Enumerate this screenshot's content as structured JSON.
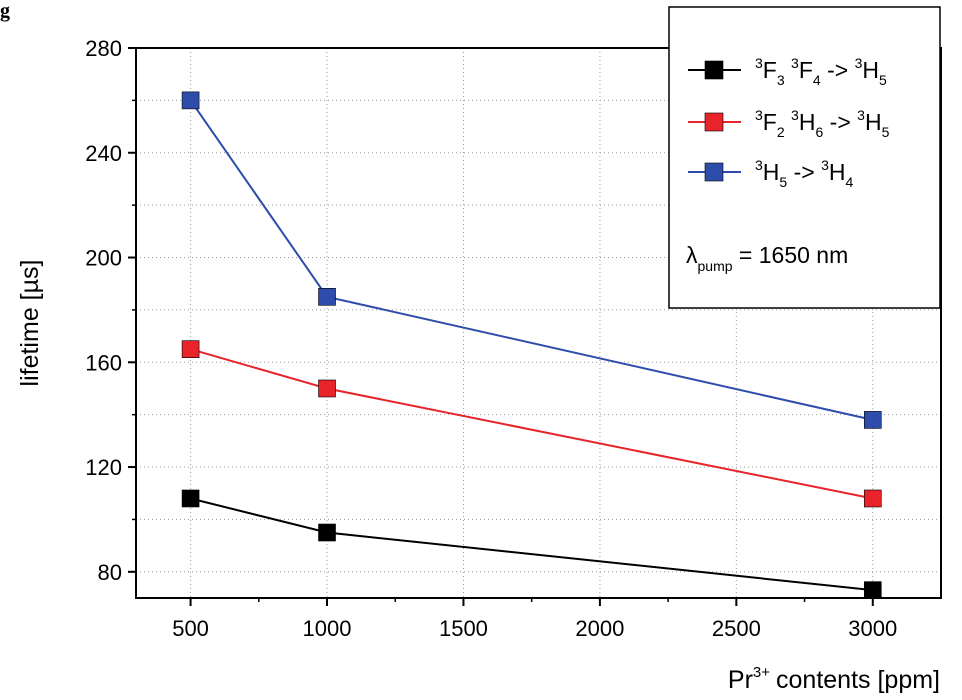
{
  "figure_fragment": "g",
  "chart_data": {
    "type": "line",
    "xlabel": "contents [ppm]",
    "xlabel_prefix": "Pr",
    "xlabel_sup": "3+",
    "ylabel": "lifetime [µs]",
    "xlim": [
      300,
      3250
    ],
    "ylim": [
      70,
      280
    ],
    "xticks": [
      500,
      1000,
      1500,
      2000,
      2500,
      3000
    ],
    "yticks": [
      80,
      120,
      160,
      200,
      240,
      280
    ],
    "x": [
      500,
      1000,
      3000
    ],
    "series": [
      {
        "values": [
          108,
          95,
          73
        ],
        "color": "#000000",
        "legend": [
          {
            "t": "3",
            "s": "sup"
          },
          {
            "t": "F"
          },
          {
            "t": "3",
            "s": "sub"
          },
          {
            "t": " "
          },
          {
            "t": "3",
            "s": "sup"
          },
          {
            "t": "F"
          },
          {
            "t": "4",
            "s": "sub"
          },
          {
            "t": " -> "
          },
          {
            "t": "3",
            "s": "sup"
          },
          {
            "t": "H"
          },
          {
            "t": "5",
            "s": "sub"
          }
        ]
      },
      {
        "values": [
          165,
          150,
          108
        ],
        "color": "#e8232a",
        "legend": [
          {
            "t": "3",
            "s": "sup"
          },
          {
            "t": "F"
          },
          {
            "t": "2",
            "s": "sub"
          },
          {
            "t": " "
          },
          {
            "t": "3",
            "s": "sup"
          },
          {
            "t": "H"
          },
          {
            "t": "6",
            "s": "sub"
          },
          {
            "t": " -> "
          },
          {
            "t": "3",
            "s": "sup"
          },
          {
            "t": "H"
          },
          {
            "t": "5",
            "s": "sub"
          }
        ]
      },
      {
        "values": [
          260,
          185,
          138
        ],
        "color": "#2e4dab",
        "legend": [
          {
            "t": "3",
            "s": "sup"
          },
          {
            "t": "H"
          },
          {
            "t": "5",
            "s": "sub"
          },
          {
            "t": " -> "
          },
          {
            "t": "3",
            "s": "sup"
          },
          {
            "t": "H"
          },
          {
            "t": "4",
            "s": "sub"
          }
        ]
      }
    ],
    "annotation": {
      "symbol": "λ",
      "sub": "pump",
      "text": " = 1650 nm"
    },
    "legend_position": "top-right",
    "grid": "dotted"
  }
}
